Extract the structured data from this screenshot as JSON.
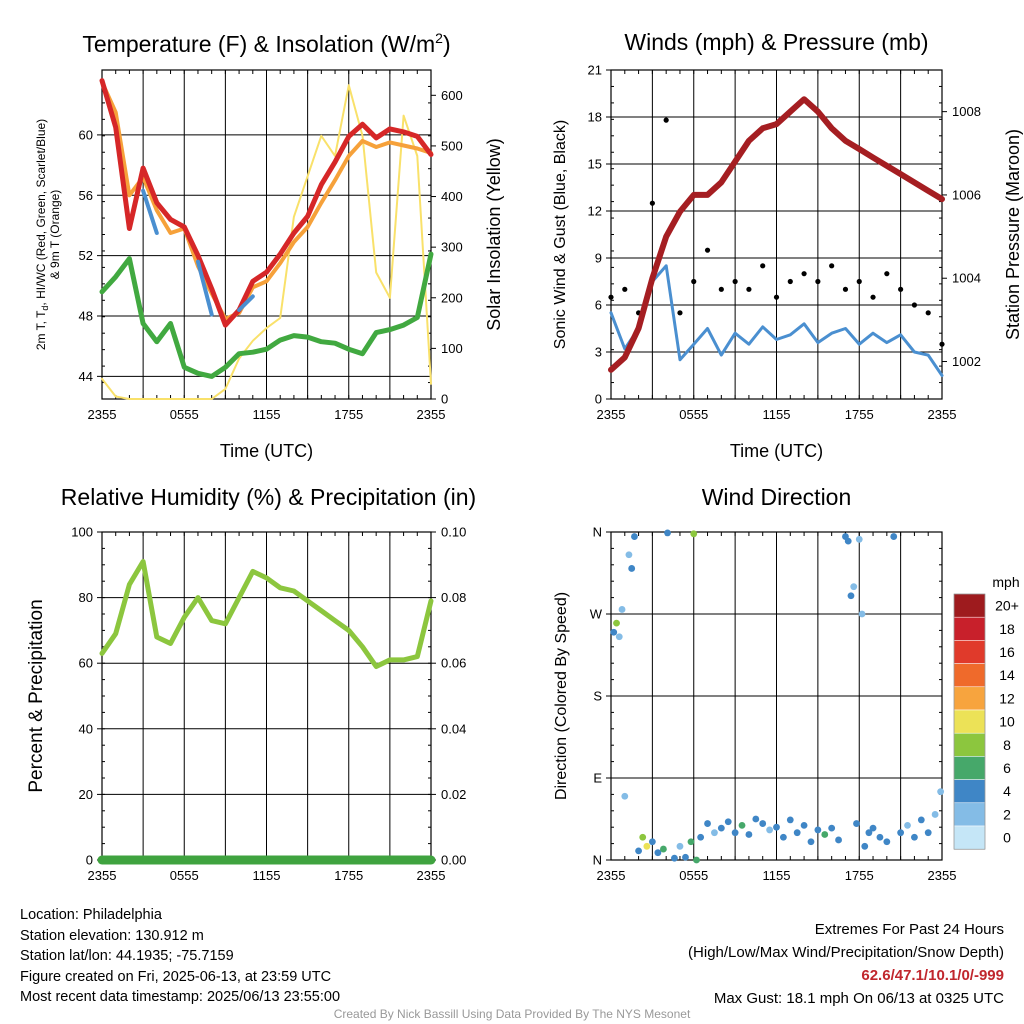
{
  "chart_data": [
    {
      "type": "line",
      "title": "Temperature (F) & Insolation (W/m²)",
      "title_parts": {
        "main": "Temperature (F) & Insolation (W/m",
        "sup": "2",
        "close": ")"
      },
      "xlabel": "Time (UTC)",
      "ylabel_left_lines": [
        "2m T, T",
        "d",
        ", HI/WC (Red, Green, Scarlet/Blue)",
        "& 9m T (Orange)"
      ],
      "ylabel_right": "Solar Insolation (Yellow)",
      "x_ticks": [
        "2355",
        "0555",
        "1155",
        "1755",
        "2355"
      ],
      "ylim": [
        42.5,
        64.3
      ],
      "y_ticks": [
        "44",
        "48",
        "52",
        "56",
        "60"
      ],
      "y2lim": [
        0,
        650
      ],
      "y2_ticks": [
        "0",
        "100",
        "200",
        "300",
        "400",
        "500",
        "600"
      ],
      "hours": [
        0,
        1,
        2,
        3,
        4,
        5,
        6,
        7,
        8,
        9,
        10,
        11,
        12,
        13,
        14,
        15,
        16,
        17,
        18,
        19,
        20,
        21,
        22,
        23,
        24
      ],
      "series": [
        {
          "color": "#d62728",
          "axis": "left",
          "values": [
            63.6,
            60.5,
            53.8,
            57.8,
            55.5,
            54.4,
            53.9,
            52.0,
            49.8,
            47.4,
            48.4,
            50.3,
            50.9,
            52.1,
            53.5,
            54.6,
            56.7,
            58.2,
            59.9,
            60.7,
            59.8,
            60.4,
            60.2,
            59.9,
            58.7
          ]
        },
        {
          "color": "#f6a13a",
          "axis": "left",
          "values": [
            63.5,
            61.5,
            56.0,
            57.2,
            55.0,
            53.5,
            53.8,
            51.3,
            49.5,
            47.8,
            48.2,
            49.9,
            50.3,
            51.5,
            52.9,
            53.9,
            55.5,
            57.0,
            58.6,
            59.6,
            59.2,
            59.5,
            59.3,
            59.1,
            58.8
          ]
        },
        {
          "color": "#4a8fd0",
          "axis": "left",
          "values": [
            null,
            null,
            null,
            56.3,
            53.5,
            null,
            null,
            51.6,
            48.1,
            null,
            48.4,
            49.3,
            null,
            null,
            null,
            null,
            null,
            null,
            null,
            null,
            null,
            null,
            null,
            null,
            null
          ]
        },
        {
          "color": "#41a940",
          "axis": "left",
          "values": [
            49.6,
            50.6,
            51.8,
            47.5,
            46.3,
            47.5,
            44.6,
            44.2,
            44.0,
            44.6,
            45.5,
            45.6,
            45.8,
            46.4,
            46.7,
            46.6,
            46.3,
            46.2,
            45.8,
            45.5,
            46.9,
            47.1,
            47.4,
            47.9,
            52.1
          ]
        },
        {
          "color": "#f9e16a",
          "axis": "right",
          "values": [
            40,
            5,
            0,
            0,
            0,
            0,
            0,
            0,
            0,
            20,
            80,
            115,
            140,
            160,
            360,
            440,
            520,
            480,
            620,
            520,
            250,
            200,
            560,
            480,
            30
          ]
        }
      ]
    },
    {
      "type": "line",
      "title": "Winds (mph) & Pressure (mb)",
      "xlabel": "Time (UTC)",
      "ylabel": "Sonic Wind & Gust (Blue, Black)",
      "ylabel_right": "Station Pressure (Maroon)",
      "x_ticks": [
        "2355",
        "0555",
        "1155",
        "1755",
        "2355"
      ],
      "ylim": [
        0,
        21
      ],
      "y_ticks": [
        "0",
        "3",
        "6",
        "9",
        "12",
        "15",
        "18",
        "21"
      ],
      "y2lim": [
        1001.1,
        1009.0
      ],
      "y2_ticks": [
        "1002",
        "1004",
        "1006",
        "1008"
      ],
      "hours": [
        0,
        1,
        2,
        3,
        4,
        5,
        6,
        7,
        8,
        9,
        10,
        11,
        12,
        13,
        14,
        15,
        16,
        17,
        18,
        19,
        20,
        21,
        22,
        23,
        24
      ],
      "series": [
        {
          "name": "Sonic Wind",
          "color": "#4a8fd0",
          "axis": "left",
          "values": [
            5.5,
            3.2,
            4.5,
            7.5,
            8.5,
            2.5,
            3.5,
            4.5,
            2.8,
            4.2,
            3.5,
            4.6,
            3.8,
            4.1,
            4.8,
            3.6,
            4.2,
            4.5,
            3.5,
            4.2,
            3.6,
            4.1,
            3.0,
            2.8,
            1.5
          ]
        },
        {
          "name": "Gust",
          "color": "#000000",
          "axis": "left",
          "style": "points",
          "values": [
            6.5,
            7.0,
            5.5,
            12.5,
            17.8,
            5.5,
            7.5,
            9.5,
            7.0,
            7.5,
            7.0,
            8.5,
            6.5,
            7.5,
            8.0,
            7.5,
            8.5,
            7.0,
            7.5,
            6.5,
            8.0,
            7.0,
            6.0,
            5.5,
            3.5
          ]
        },
        {
          "name": "Station Pressure",
          "color": "#a51e22",
          "axis": "right",
          "values": [
            1001.8,
            1002.1,
            1002.8,
            1004.0,
            1005.0,
            1005.6,
            1006.0,
            1006.0,
            1006.3,
            1006.8,
            1007.3,
            1007.6,
            1007.7,
            1008.0,
            1008.3,
            1008.0,
            1007.6,
            1007.3,
            1007.1,
            1006.9,
            1006.7,
            1006.5,
            1006.3,
            1006.1,
            1005.9
          ]
        }
      ]
    },
    {
      "type": "line",
      "title": "Relative Humidity (%) & Precipitation (in)",
      "xlabel": "",
      "ylabel": "Percent & Precipitation",
      "x_ticks": [
        "2355",
        "0555",
        "1155",
        "1755",
        "2355"
      ],
      "ylim": [
        0,
        100
      ],
      "y_ticks": [
        "0",
        "20",
        "40",
        "60",
        "80",
        "100"
      ],
      "y2lim": [
        0,
        0.1
      ],
      "y2_ticks": [
        "0.00",
        "0.02",
        "0.04",
        "0.06",
        "0.08",
        "0.10"
      ],
      "hours": [
        0,
        1,
        2,
        3,
        4,
        5,
        6,
        7,
        8,
        9,
        10,
        11,
        12,
        13,
        14,
        15,
        16,
        17,
        18,
        19,
        20,
        21,
        22,
        23,
        24
      ],
      "series": [
        {
          "name": "Relative Humidity",
          "color": "#8cc63e",
          "axis": "left",
          "values": [
            63,
            69,
            84,
            91,
            68,
            66,
            74,
            80,
            73,
            72,
            80,
            88,
            86,
            83,
            82,
            79,
            76,
            73,
            70,
            65,
            59,
            61,
            61,
            62,
            79
          ]
        },
        {
          "name": "Precipitation",
          "color": "#3fa33f",
          "axis": "right",
          "values": [
            0,
            0,
            0,
            0,
            0,
            0,
            0,
            0,
            0,
            0,
            0,
            0,
            0,
            0,
            0,
            0,
            0,
            0,
            0,
            0,
            0,
            0,
            0,
            0,
            0
          ]
        }
      ]
    },
    {
      "type": "scatter",
      "title": "Wind Direction",
      "ylabel": "Direction (Colored By Speed)",
      "x_ticks": [
        "2355",
        "0555",
        "1155",
        "1755",
        "2355"
      ],
      "y_ticks": [
        "N",
        "E",
        "S",
        "W",
        "N"
      ],
      "ylim": [
        0,
        360
      ],
      "colorbar": {
        "unit": "mph",
        "labels": [
          "20+",
          "18",
          "16",
          "14",
          "12",
          "10",
          "8",
          "6",
          "4",
          "2",
          "0"
        ],
        "colors": [
          "#9e1b1e",
          "#c8202b",
          "#e03a2b",
          "#ef6a2b",
          "#f7a43e",
          "#ece257",
          "#8cc63e",
          "#46a86a",
          "#3f86c6",
          "#84bce6",
          "#c5e6f7"
        ]
      },
      "points": [
        [
          0.2,
          250,
          4
        ],
        [
          0.4,
          260,
          8
        ],
        [
          0.6,
          245,
          2
        ],
        [
          0.8,
          275,
          2
        ],
        [
          1.0,
          70,
          2
        ],
        [
          1.3,
          335,
          2
        ],
        [
          1.5,
          320,
          4
        ],
        [
          1.7,
          355,
          4
        ],
        [
          2.0,
          10,
          4
        ],
        [
          2.3,
          25,
          8
        ],
        [
          2.6,
          15,
          10
        ],
        [
          3.0,
          20,
          4
        ],
        [
          3.4,
          8,
          4
        ],
        [
          3.8,
          12,
          6
        ],
        [
          4.1,
          359,
          4
        ],
        [
          4.6,
          2,
          4
        ],
        [
          5.0,
          15,
          2
        ],
        [
          5.4,
          3,
          4
        ],
        [
          5.8,
          20,
          6
        ],
        [
          6.0,
          358,
          8
        ],
        [
          6.2,
          0,
          6
        ],
        [
          6.5,
          25,
          4
        ],
        [
          7.0,
          40,
          4
        ],
        [
          7.5,
          30,
          2
        ],
        [
          8.0,
          35,
          4
        ],
        [
          8.5,
          42,
          4
        ],
        [
          9.0,
          30,
          4
        ],
        [
          9.5,
          38,
          6
        ],
        [
          10.0,
          28,
          4
        ],
        [
          10.5,
          45,
          4
        ],
        [
          11.0,
          40,
          4
        ],
        [
          11.5,
          33,
          2
        ],
        [
          12.0,
          36,
          4
        ],
        [
          12.5,
          25,
          4
        ],
        [
          13.0,
          44,
          4
        ],
        [
          13.5,
          30,
          4
        ],
        [
          14.0,
          38,
          4
        ],
        [
          14.5,
          20,
          4
        ],
        [
          15.0,
          33,
          4
        ],
        [
          15.5,
          28,
          6
        ],
        [
          16.0,
          35,
          4
        ],
        [
          16.5,
          22,
          4
        ],
        [
          17.0,
          355,
          4
        ],
        [
          17.2,
          350,
          4
        ],
        [
          17.4,
          290,
          4
        ],
        [
          17.6,
          300,
          2
        ],
        [
          17.8,
          40,
          4
        ],
        [
          18.0,
          352,
          2
        ],
        [
          18.2,
          270,
          2
        ],
        [
          18.4,
          15,
          4
        ],
        [
          18.7,
          30,
          4
        ],
        [
          19.0,
          35,
          4
        ],
        [
          19.5,
          25,
          4
        ],
        [
          20.0,
          20,
          4
        ],
        [
          20.5,
          355,
          4
        ],
        [
          21.0,
          30,
          4
        ],
        [
          21.5,
          38,
          2
        ],
        [
          22.0,
          25,
          4
        ],
        [
          22.5,
          44,
          4
        ],
        [
          23.0,
          30,
          4
        ],
        [
          23.5,
          50,
          2
        ],
        [
          23.9,
          75,
          2
        ]
      ]
    }
  ],
  "footer": {
    "info_lines": [
      "Location: Philadelphia",
      "Station elevation: 130.912 m",
      "Station lat/lon: 44.1935; -75.7159",
      "Figure created on Fri, 2025-06-13, at 23:59 UTC",
      "Most recent data timestamp: 2025/06/13 23:55:00"
    ],
    "extremes_title": "Extremes For Past 24 Hours",
    "extremes_subtitle": "(High/Low/Max Wind/Precipitation/Snow Depth)",
    "extremes_values": "62.6/47.1/10.1/0/-999",
    "max_gust": "Max Gust: 18.1 mph On 06/13 at 0325 UTC",
    "credit": "Created By Nick Bassill Using Data Provided By The NYS Mesonet"
  }
}
